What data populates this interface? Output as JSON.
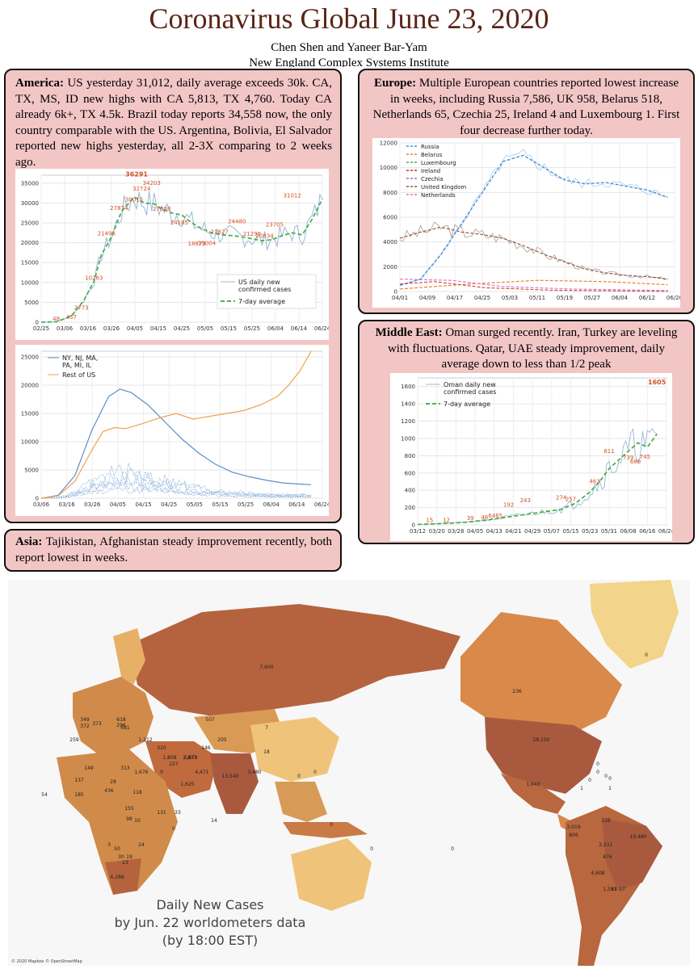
{
  "header": {
    "title": "Coronavirus Global June 23, 2020",
    "authors": "Chen Shen and Yaneer Bar-Yam",
    "institute": "New England Complex Systems Institute"
  },
  "america": {
    "heading": "America:",
    "text": " US yesterday 31,012, daily average exceeds 30k. CA, TX, MS, ID new highs with CA 5,813, TX 4,760. Today CA already 6k+, TX 4.5k. Brazil today reports 34,558 now, the only country comparable with the US. Argentina, Bolivia, El Salvador reported new highs yesterday, all 2-3X comparing to 2 weeks ago."
  },
  "europe": {
    "heading": "Europe:",
    "text": " Multiple European countries reported lowest increase in weeks, including Russia 7,586, UK 958, Belarus 518, Netherlands 65, Czechia 25, Ireland 4 and Luxembourg 1. First four decrease further today."
  },
  "middle_east": {
    "heading": "Middle East:",
    "text": " Oman surged recently. Iran, Turkey are leveling with fluctuations. Qatar, UAE steady improvement, daily average down to less than 1/2 peak"
  },
  "asia": {
    "heading": "Asia:",
    "text": " Tajikistan, Afghanistan steady improvement recently, both report lowest in weeks."
  },
  "chart_data": [
    {
      "id": "us",
      "type": "line",
      "title": "",
      "xlabel": "",
      "ylabel": "",
      "ylim": [
        0,
        37000
      ],
      "x": [
        "02/25",
        "03/06",
        "03/16",
        "03/26",
        "04/05",
        "04/15",
        "04/25",
        "05/05",
        "05/15",
        "05/25",
        "06/04",
        "06/14",
        "06/24"
      ],
      "yticks": [
        0,
        5000,
        10000,
        15000,
        20000,
        25000,
        30000,
        35000
      ],
      "series": [
        {
          "name": "US daily new confirmed cases",
          "color": "#9ab8d8"
        },
        {
          "name": "7-day average",
          "color": "#4caf50"
        }
      ],
      "avg": [
        [
          0,
          0
        ],
        [
          6,
          100
        ],
        [
          12,
          1500
        ],
        [
          17,
          5500
        ],
        [
          21,
          10263
        ],
        [
          24,
          17000
        ],
        [
          28,
          21496
        ],
        [
          32,
          27874
        ],
        [
          37,
          31500
        ],
        [
          41,
          30015
        ],
        [
          45,
          29800
        ],
        [
          48,
          28500
        ],
        [
          52,
          27500
        ],
        [
          56,
          27000
        ],
        [
          60,
          25000
        ],
        [
          64,
          23500
        ],
        [
          68,
          22500
        ],
        [
          72,
          22000
        ],
        [
          76,
          21800
        ],
        [
          80,
          21500
        ],
        [
          84,
          21000
        ],
        [
          88,
          20500
        ],
        [
          92,
          20800
        ],
        [
          96,
          21800
        ],
        [
          100,
          22500
        ],
        [
          104,
          22000
        ],
        [
          108,
          26000
        ],
        [
          112,
          31012
        ]
      ],
      "labels": [
        {
          "t": "36291",
          "d": 38,
          "v": 36291,
          "big": true
        },
        {
          "t": "34203",
          "d": 44,
          "v": 34203
        },
        {
          "t": "32724",
          "d": 40,
          "v": 32724
        },
        {
          "t": "30015",
          "d": 37,
          "v": 30015
        },
        {
          "t": "27874",
          "d": 31,
          "v": 27874
        },
        {
          "t": "21496",
          "d": 26,
          "v": 21496
        },
        {
          "t": "10263",
          "d": 21,
          "v": 10263
        },
        {
          "t": "2773",
          "d": 16,
          "v": 2773
        },
        {
          "t": "457",
          "d": 12,
          "v": 457
        },
        {
          "t": "48",
          "d": 6,
          "v": 48
        },
        {
          "t": "27608",
          "d": 48,
          "v": 27608
        },
        {
          "t": "24185",
          "d": 55,
          "v": 24185
        },
        {
          "t": "18873",
          "d": 62,
          "v": 18873
        },
        {
          "t": "19004",
          "d": 66,
          "v": 19004
        },
        {
          "t": "21827",
          "d": 71,
          "v": 21827
        },
        {
          "t": "24480",
          "d": 78,
          "v": 24480
        },
        {
          "t": "21298",
          "d": 84,
          "v": 21298
        },
        {
          "t": "20834",
          "d": 89,
          "v": 20834
        },
        {
          "t": "23705",
          "d": 93,
          "v": 23705
        },
        {
          "t": "31012",
          "d": 100,
          "v": 31012
        }
      ]
    },
    {
      "id": "us_regions",
      "type": "line",
      "ylim": [
        0,
        26000
      ],
      "x": [
        "03/06",
        "03/16",
        "03/26",
        "04/05",
        "04/15",
        "04/25",
        "05/05",
        "05/15",
        "05/25",
        "06/04",
        "06/14",
        "06/24"
      ],
      "yticks": [
        0,
        5000,
        10000,
        15000,
        20000,
        25000
      ],
      "series": [
        {
          "name": "NY, NJ, MA, PA, MI, IL",
          "color": "#5b8fc9"
        },
        {
          "name": "Rest of US",
          "color": "#f0a050"
        }
      ],
      "blue": [
        [
          0,
          0
        ],
        [
          6,
          500
        ],
        [
          12,
          4000
        ],
        [
          18,
          12000
        ],
        [
          24,
          18000
        ],
        [
          28,
          19300
        ],
        [
          32,
          18700
        ],
        [
          38,
          16500
        ],
        [
          44,
          13500
        ],
        [
          50,
          10500
        ],
        [
          56,
          8000
        ],
        [
          62,
          6000
        ],
        [
          68,
          4600
        ],
        [
          74,
          3800
        ],
        [
          80,
          3200
        ],
        [
          86,
          2700
        ],
        [
          92,
          2500
        ],
        [
          96,
          2400
        ]
      ],
      "orange": [
        [
          0,
          0
        ],
        [
          6,
          400
        ],
        [
          12,
          3000
        ],
        [
          18,
          8500
        ],
        [
          22,
          11800
        ],
        [
          26,
          12500
        ],
        [
          30,
          12300
        ],
        [
          36,
          13200
        ],
        [
          42,
          14200
        ],
        [
          48,
          15000
        ],
        [
          54,
          14000
        ],
        [
          60,
          14500
        ],
        [
          66,
          15000
        ],
        [
          72,
          15500
        ],
        [
          78,
          16500
        ],
        [
          84,
          18000
        ],
        [
          88,
          20000
        ],
        [
          92,
          22500
        ],
        [
          96,
          26000
        ]
      ]
    },
    {
      "id": "europe",
      "type": "line",
      "ylim": [
        0,
        12000
      ],
      "x": [
        "04/01",
        "04/09",
        "04/17",
        "04/25",
        "05/03",
        "05/11",
        "05/19",
        "05/27",
        "06/04",
        "06/12",
        "06/20"
      ],
      "yticks": [
        0,
        2000,
        4000,
        6000,
        8000,
        10000,
        12000
      ],
      "series": [
        {
          "name": "Russia",
          "color": "#4a90d9"
        },
        {
          "name": "Belarus",
          "color": "#f08030"
        },
        {
          "name": "Luxembourg",
          "color": "#4caf50"
        },
        {
          "name": "Ireland",
          "color": "#c0392b"
        },
        {
          "name": "Czechia",
          "color": "#8e7cc3"
        },
        {
          "name": "United Kingdom",
          "color": "#8b5a4a"
        },
        {
          "name": "Netherlands",
          "color": "#e377c2"
        }
      ],
      "russia": [
        [
          0,
          500
        ],
        [
          6,
          1000
        ],
        [
          12,
          3000
        ],
        [
          18,
          5500
        ],
        [
          24,
          8000
        ],
        [
          30,
          10500
        ],
        [
          36,
          11000
        ],
        [
          42,
          10000
        ],
        [
          48,
          9000
        ],
        [
          54,
          8700
        ],
        [
          60,
          8800
        ],
        [
          66,
          8500
        ],
        [
          72,
          8200
        ],
        [
          78,
          7600
        ]
      ],
      "uk": [
        [
          0,
          4300
        ],
        [
          6,
          4800
        ],
        [
          12,
          5200
        ],
        [
          18,
          4800
        ],
        [
          24,
          4600
        ],
        [
          30,
          4300
        ],
        [
          36,
          3700
        ],
        [
          42,
          3000
        ],
        [
          48,
          2400
        ],
        [
          54,
          1800
        ],
        [
          60,
          1500
        ],
        [
          66,
          1300
        ],
        [
          72,
          1200
        ],
        [
          78,
          1000
        ]
      ],
      "belarus": [
        [
          0,
          200
        ],
        [
          20,
          600
        ],
        [
          40,
          900
        ],
        [
          60,
          800
        ],
        [
          78,
          550
        ]
      ],
      "neth": [
        [
          0,
          1000
        ],
        [
          15,
          900
        ],
        [
          30,
          400
        ],
        [
          50,
          200
        ],
        [
          78,
          80
        ]
      ],
      "ireland": [
        [
          0,
          600
        ],
        [
          10,
          800
        ],
        [
          25,
          300
        ],
        [
          45,
          100
        ],
        [
          78,
          10
        ]
      ]
    },
    {
      "id": "oman",
      "type": "line",
      "ylim": [
        0,
        1700
      ],
      "x": [
        "03/12",
        "03/20",
        "03/28",
        "04/05",
        "04/13",
        "04/21",
        "04/29",
        "05/07",
        "05/15",
        "05/23",
        "05/31",
        "06/08",
        "06/16",
        "06/24"
      ],
      "yticks": [
        0,
        200,
        400,
        600,
        800,
        1000,
        1200,
        1400,
        1600
      ],
      "series": [
        {
          "name": "Oman daily new confirmed cases",
          "color": "#9ab8d8"
        },
        {
          "name": "7-day average",
          "color": "#4caf50"
        }
      ],
      "avg": [
        [
          0,
          5
        ],
        [
          10,
          15
        ],
        [
          20,
          30
        ],
        [
          30,
          60
        ],
        [
          40,
          100
        ],
        [
          50,
          140
        ],
        [
          60,
          180
        ],
        [
          66,
          250
        ],
        [
          72,
          380
        ],
        [
          76,
          500
        ],
        [
          80,
          650
        ],
        [
          84,
          750
        ],
        [
          88,
          850
        ],
        [
          92,
          950
        ],
        [
          96,
          900
        ],
        [
          100,
          1050
        ]
      ],
      "labels": [
        {
          "t": "1605",
          "d": 100,
          "v": 1605,
          "big": true
        },
        {
          "t": "811",
          "d": 80,
          "v": 811
        },
        {
          "t": "739",
          "d": 88,
          "v": 739
        },
        {
          "t": "745",
          "d": 95,
          "v": 745
        },
        {
          "t": "689",
          "d": 91,
          "v": 689
        },
        {
          "t": "463",
          "d": 74,
          "v": 463
        },
        {
          "t": "274",
          "d": 60,
          "v": 274
        },
        {
          "t": "257",
          "d": 64,
          "v": 257
        },
        {
          "t": "243",
          "d": 45,
          "v": 243
        },
        {
          "t": "192",
          "d": 38,
          "v": 192
        },
        {
          "t": "15",
          "d": 5,
          "v": 15
        },
        {
          "t": "12",
          "d": 12,
          "v": 12
        },
        {
          "t": "39",
          "d": 22,
          "v": 39
        },
        {
          "t": "46",
          "d": 28,
          "v": 46
        },
        {
          "t": "64",
          "d": 31,
          "v": 64
        },
        {
          "t": "65",
          "d": 34,
          "v": 65
        }
      ]
    }
  ],
  "map": {
    "caption_line1": "Daily New Cases",
    "caption_line2": "by Jun. 22 worldometers data",
    "caption_line3": "(by 18:00 EST)",
    "credit": "© 2020 Mapbox © OpenStreetMap",
    "labels": [
      "7,600",
      "236",
      "28,150",
      "19,480",
      "507",
      "7",
      "18",
      "13,540",
      "3,480",
      "4,471",
      "2,873",
      "1,808",
      "1,212",
      "1,676",
      "1,625",
      "2,511",
      "876",
      "4,608",
      "1,581",
      "3,019",
      "1,943",
      "809",
      "128",
      "13",
      "0",
      "0",
      "14",
      "54",
      "98",
      "155",
      "131",
      "4,288",
      "372",
      "373",
      "618",
      "681",
      "296",
      "349",
      "259",
      "149",
      "137",
      "185",
      "436",
      "118",
      "0",
      "33",
      "50",
      "30",
      "28",
      "10",
      "24",
      "19",
      "23",
      "3",
      "227",
      "0",
      "320",
      "146",
      "205",
      "2,873",
      "0",
      "0",
      "0",
      "0",
      "0",
      "0",
      "17",
      "1",
      "0",
      "0",
      "0",
      "1",
      "313"
    ]
  }
}
